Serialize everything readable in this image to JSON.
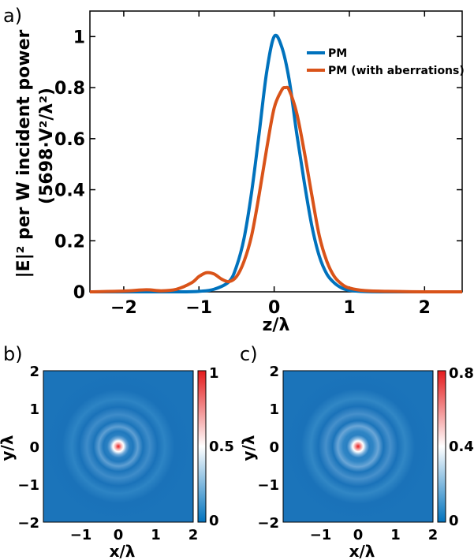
{
  "colors": {
    "pm": "#0072bd",
    "pm_aberr": "#d95319",
    "map_low": "#0072bd",
    "map_mid": "#ffffff",
    "map_high": "#e41a1c"
  },
  "chart_data": [
    {
      "panel": "a)",
      "type": "line",
      "xlabel": "z/λ",
      "ylabel_line1": "|E|² per W incident power",
      "ylabel_line2": "(5698·V²/λ²)",
      "xlim": [
        -2.45,
        2.5
      ],
      "ylim": [
        0,
        1.1
      ],
      "xticks": [
        "−2",
        "−1",
        "0",
        "1",
        "2"
      ],
      "xtick_values": [
        -2,
        -1,
        0,
        1,
        2
      ],
      "yticks": [
        "0",
        "0.2",
        "0.4",
        "0.6",
        "0.8",
        "1"
      ],
      "ytick_values": [
        0,
        0.2,
        0.4,
        0.6,
        0.8,
        1
      ],
      "legend_position": "top-right",
      "grid": false,
      "series": [
        {
          "name": "PM",
          "color": "#0072bd",
          "x": [
            -2.45,
            -2.0,
            -1.5,
            -1.2,
            -1.0,
            -0.8,
            -0.6,
            -0.5,
            -0.4,
            -0.3,
            -0.2,
            -0.1,
            0.0,
            0.1,
            0.2,
            0.3,
            0.4,
            0.5,
            0.6,
            0.7,
            0.8,
            0.9,
            1.0,
            1.2,
            1.5,
            2.0,
            2.5
          ],
          "y": [
            0,
            0,
            0,
            0,
            0.002,
            0.01,
            0.04,
            0.1,
            0.21,
            0.39,
            0.62,
            0.86,
            1.0,
            0.96,
            0.83,
            0.62,
            0.43,
            0.26,
            0.14,
            0.07,
            0.035,
            0.015,
            0.006,
            0.001,
            0,
            0,
            0
          ]
        },
        {
          "name": "PM (with aberrations)",
          "color": "#d95319",
          "x": [
            -2.45,
            -2.0,
            -1.7,
            -1.5,
            -1.3,
            -1.1,
            -1.0,
            -0.9,
            -0.8,
            -0.7,
            -0.6,
            -0.5,
            -0.4,
            -0.3,
            -0.2,
            -0.1,
            0.0,
            0.1,
            0.15,
            0.2,
            0.3,
            0.4,
            0.5,
            0.6,
            0.7,
            0.8,
            0.9,
            1.0,
            1.2,
            1.5,
            2.0,
            2.5
          ],
          "y": [
            0,
            0.003,
            0.008,
            0.004,
            0.01,
            0.035,
            0.06,
            0.075,
            0.07,
            0.05,
            0.04,
            0.06,
            0.12,
            0.22,
            0.38,
            0.56,
            0.72,
            0.79,
            0.8,
            0.79,
            0.7,
            0.55,
            0.38,
            0.22,
            0.12,
            0.06,
            0.03,
            0.015,
            0.005,
            0.002,
            0,
            0
          ]
        }
      ]
    },
    {
      "panel": "b)",
      "type": "heatmap",
      "xlabel": "x/λ",
      "ylabel": "y/λ",
      "xlim": [
        -2,
        2
      ],
      "ylim": [
        -2,
        2
      ],
      "xticks": [
        "−1",
        "0",
        "1",
        "2"
      ],
      "yticks": [
        "2",
        "1",
        "0",
        "−1",
        "−2"
      ],
      "colorbar_ticks": [
        "1",
        "0.5",
        "0"
      ],
      "colorbar_range": [
        0,
        1
      ]
    },
    {
      "panel": "c)",
      "type": "heatmap",
      "xlabel": "x/λ",
      "ylabel": "y/λ",
      "xlim": [
        -2,
        2
      ],
      "ylim": [
        -2,
        2
      ],
      "xticks": [
        "−1",
        "0",
        "1",
        "2"
      ],
      "yticks": [
        "2",
        "1",
        "0",
        "−1",
        "−2"
      ],
      "colorbar_ticks": [
        "0.8",
        "0.4",
        "0"
      ],
      "colorbar_range": [
        0,
        0.8
      ]
    }
  ]
}
